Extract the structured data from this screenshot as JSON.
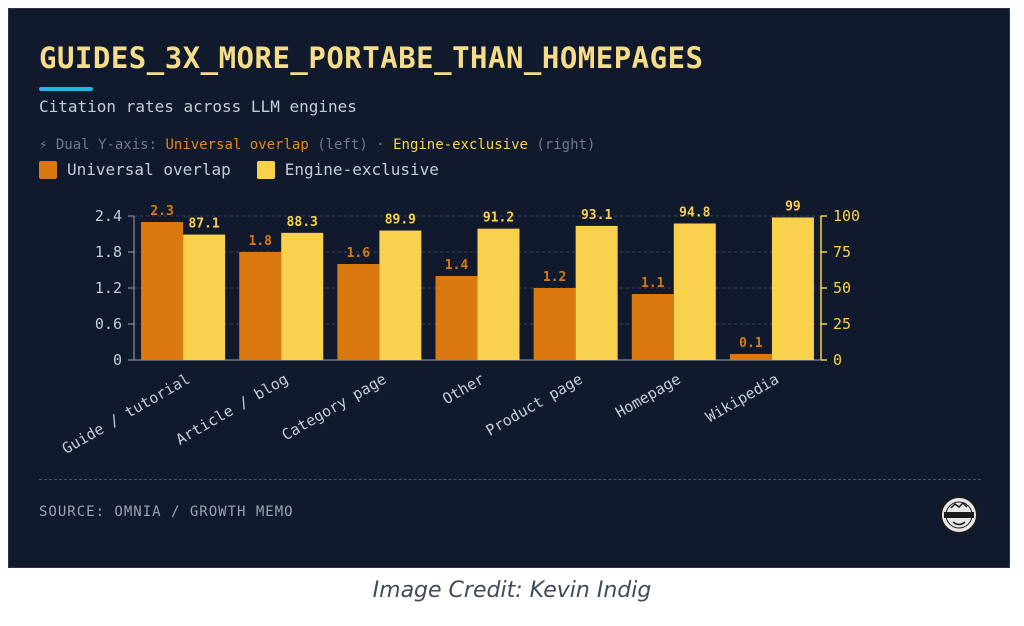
{
  "header": {
    "title": "GUIDES_3X_MORE_PORTABE_THAN_HOMEPAGES",
    "subtitle": "Citation rates across LLM engines",
    "axis_note": {
      "icon": "lightning-icon",
      "glyph": "⚡",
      "prefix": "Dual Y-axis:",
      "left_series": "Universal overlap",
      "left_tag": "(left)",
      "separator": "·",
      "right_series": "Engine-exclusive",
      "right_tag": "(right)"
    }
  },
  "colors": {
    "background": "#111a2c",
    "universal": "#d9790f",
    "exclusive": "#fad14d",
    "accent": "#22b8e6",
    "title": "#f6dd8a"
  },
  "chart_data": {
    "type": "bar",
    "categories": [
      "Guide / tutorial",
      "Article / blog",
      "Category page",
      "Other",
      "Product page",
      "Homepage",
      "Wikipedia"
    ],
    "series": [
      {
        "name": "Universal overlap",
        "axis": "left",
        "values": [
          2.3,
          1.8,
          1.6,
          1.4,
          1.2,
          1.1,
          0.1
        ],
        "labels": [
          "2.3",
          "1.8",
          "1.6",
          "1.4",
          "1.2",
          "1.1",
          "0.1"
        ]
      },
      {
        "name": "Engine-exclusive",
        "axis": "right",
        "values": [
          87.1,
          88.3,
          89.9,
          91.2,
          93.1,
          94.8,
          99
        ],
        "labels": [
          "87.1",
          "88.3",
          "89.9",
          "91.2",
          "93.1",
          "94.8",
          "99"
        ]
      }
    ],
    "y_left": {
      "range": [
        0,
        2.4
      ],
      "ticks": [
        "0",
        "0.6",
        "1.2",
        "1.8",
        "2.4"
      ],
      "tick_values": [
        0,
        0.6,
        1.2,
        1.8,
        2.4
      ]
    },
    "y_right": {
      "range": [
        0,
        100
      ],
      "ticks": [
        "0",
        "25",
        "50",
        "75",
        "100"
      ],
      "tick_values": [
        0,
        25,
        50,
        75,
        100
      ]
    },
    "grid": "horizontal-dashed",
    "legend": "top-left"
  },
  "footer": {
    "source": "SOURCE: OMNIA / GROWTH MEMO",
    "logo_icon": "growth-memo-logo-icon"
  },
  "credit": "Image Credit: Kevin Indig"
}
